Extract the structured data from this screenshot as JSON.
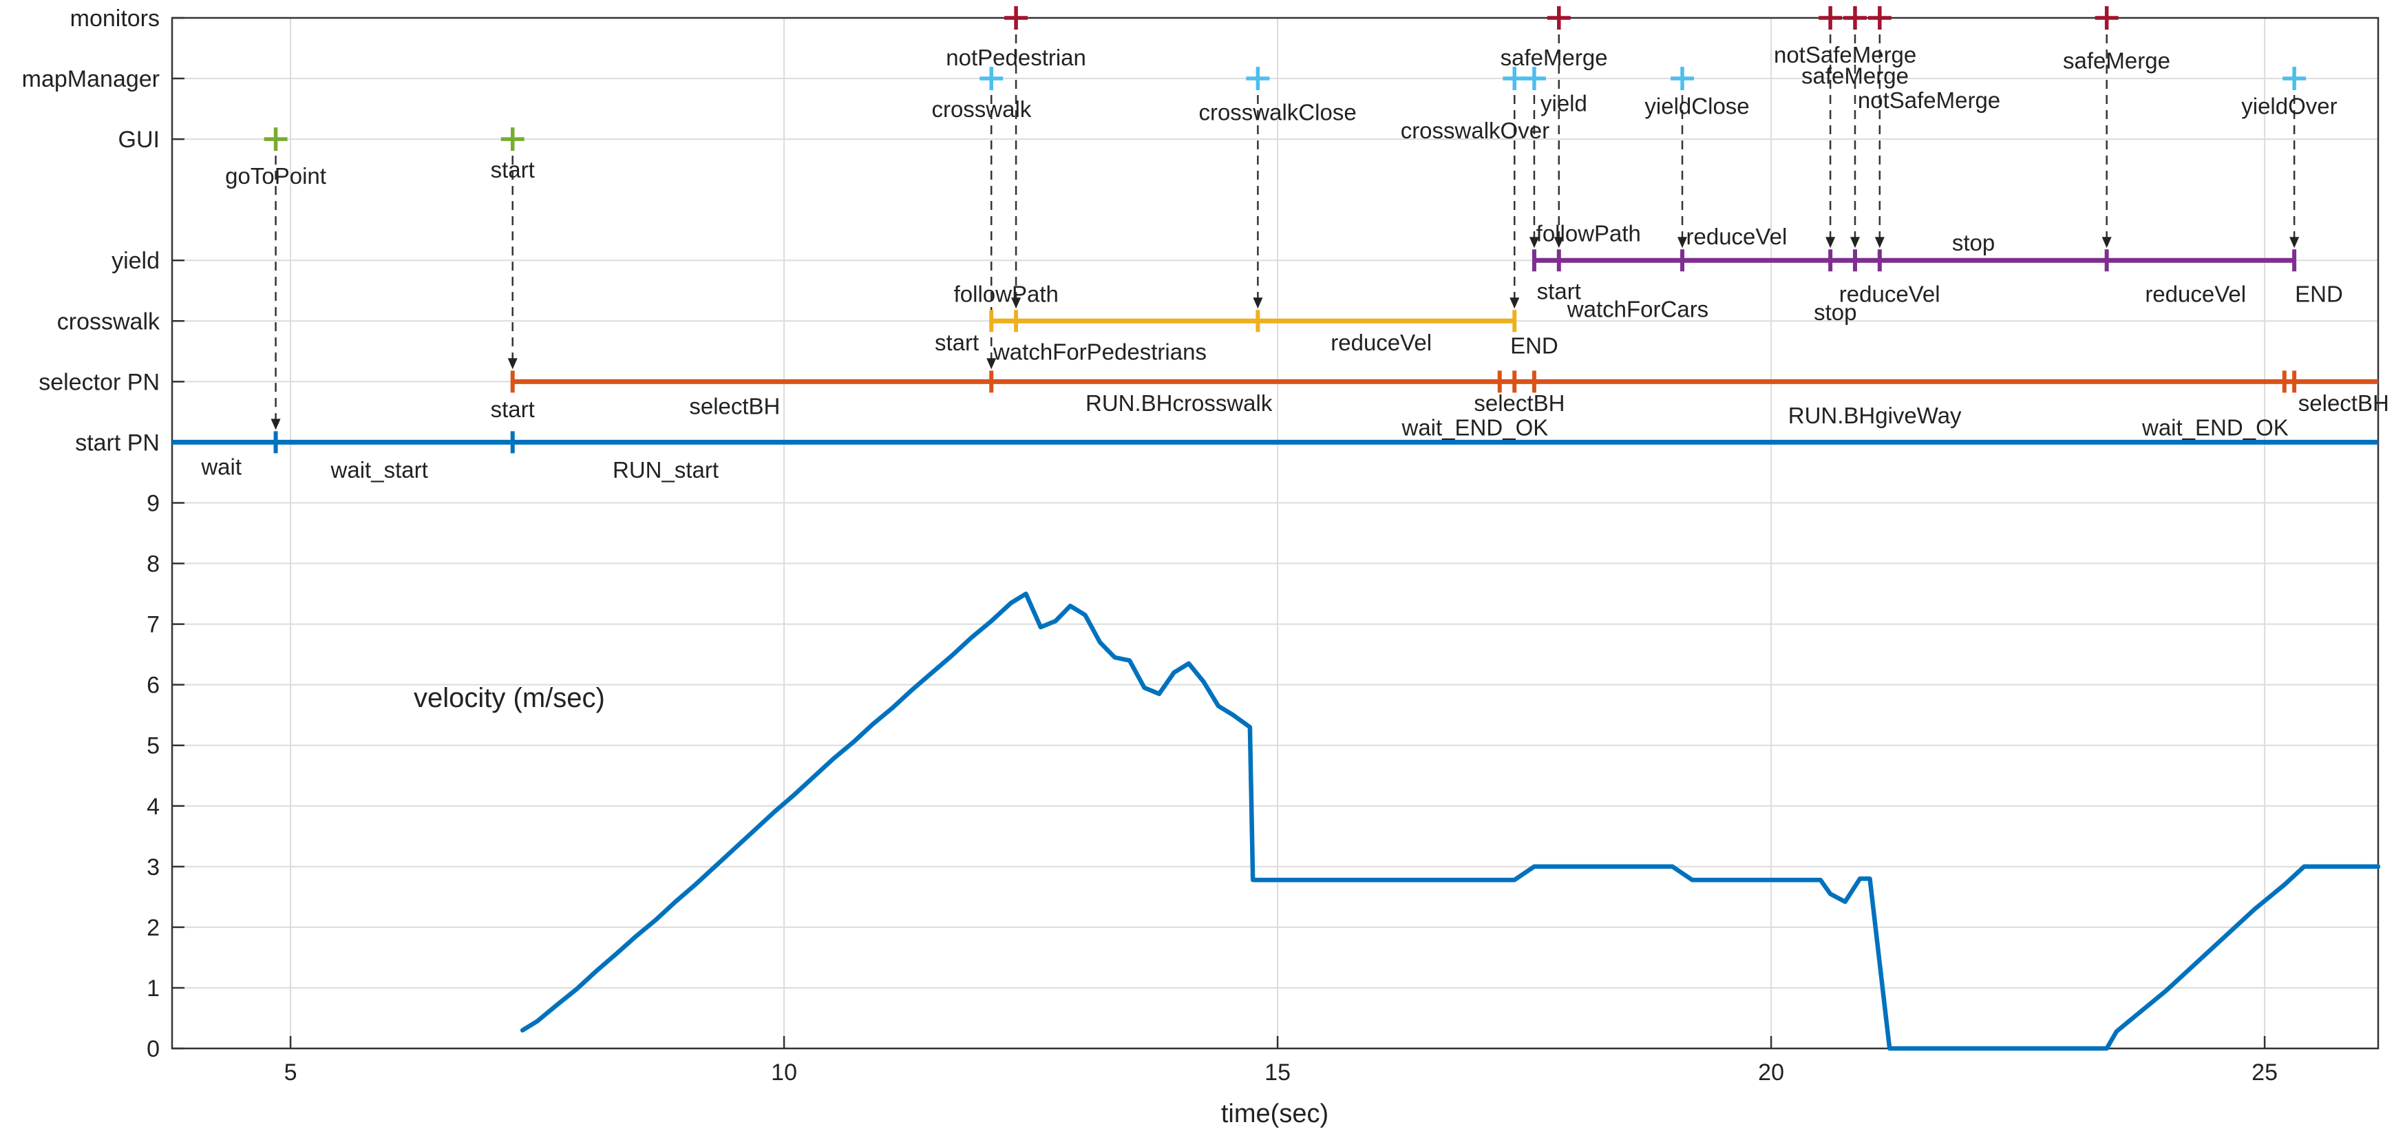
{
  "chart_data": {
    "type": "line",
    "title": "",
    "xlabel": "time(sec)",
    "ylabel": "",
    "annotation": "velocity (m/sec)",
    "xlim": [
      3.8,
      26.15
    ],
    "ylim": [
      0,
      17
    ],
    "grid": true,
    "x_ticks": [
      5,
      10,
      15,
      20,
      25
    ],
    "y_ticks": [
      0,
      1,
      2,
      3,
      4,
      5,
      6,
      7,
      8,
      9
    ],
    "colors": {
      "start_pn": "#0072bd",
      "selector_pn": "#d95319",
      "crosswalk": "#edb120",
      "yield": "#7e2f8e",
      "mapManager": "#4dbeee",
      "gui": "#77ac30",
      "monitors": "#a2142f",
      "velocity": "#0072bd"
    },
    "event_rows": [
      {
        "name": "monitors",
        "y": 17
      },
      {
        "name": "mapManager",
        "y": 16
      },
      {
        "name": "GUI",
        "y": 15
      },
      {
        "name": "yield",
        "y": 13
      },
      {
        "name": "crosswalk",
        "y": 12
      },
      {
        "name": "selector PN",
        "y": 11
      },
      {
        "name": "start PN",
        "y": 10
      }
    ],
    "state_lines": [
      {
        "row": "start PN",
        "color_key": "start_pn",
        "x": [
          3.8,
          26.15
        ],
        "ticks": [
          4.85,
          7.25
        ]
      },
      {
        "row": "selector PN",
        "color_key": "selector_pn",
        "x": [
          7.25,
          26.15
        ],
        "ticks": [
          7.25,
          12.1,
          17.25,
          17.4,
          17.6,
          25.2,
          25.3
        ]
      },
      {
        "row": "crosswalk",
        "color_key": "crosswalk",
        "x": [
          12.1,
          17.4
        ],
        "ticks": [
          12.1,
          12.35,
          14.8,
          17.4
        ]
      },
      {
        "row": "yield",
        "color_key": "yield",
        "x": [
          17.6,
          25.3
        ],
        "ticks": [
          17.6,
          17.85,
          19.1,
          20.6,
          20.85,
          21.1,
          23.4,
          25.3
        ]
      }
    ],
    "event_markers": [
      {
        "row": "GUI",
        "color_key": "gui",
        "x": [
          4.85,
          7.25
        ]
      },
      {
        "row": "mapManager",
        "color_key": "mapManager",
        "x": [
          12.1,
          14.8,
          17.4,
          17.6,
          19.1,
          25.3
        ]
      },
      {
        "row": "monitors",
        "color_key": "monitors",
        "x": [
          12.35,
          17.85,
          20.6,
          20.85,
          21.1,
          23.4
        ]
      }
    ],
    "arrows": [
      {
        "x": 4.85,
        "from": 15,
        "to": 10
      },
      {
        "x": 7.25,
        "from": 15,
        "to": 11
      },
      {
        "x": 12.1,
        "from": 16,
        "to": 11
      },
      {
        "x": 12.35,
        "from": 17,
        "to": 12
      },
      {
        "x": 14.8,
        "from": 16,
        "to": 12
      },
      {
        "x": 17.4,
        "from": 16,
        "to": 12
      },
      {
        "x": 17.6,
        "from": 16,
        "to": 13
      },
      {
        "x": 17.85,
        "from": 17,
        "to": 13
      },
      {
        "x": 19.1,
        "from": 16,
        "to": 13
      },
      {
        "x": 20.6,
        "from": 17,
        "to": 13
      },
      {
        "x": 20.85,
        "from": 17,
        "to": 13
      },
      {
        "x": 21.1,
        "from": 17,
        "to": 13
      },
      {
        "x": 23.4,
        "from": 17,
        "to": 13
      },
      {
        "x": 25.3,
        "from": 16,
        "to": 13
      }
    ],
    "event_labels": [
      {
        "text": "goToPoint",
        "x": 4.85,
        "y": 14.4
      },
      {
        "text": "start",
        "x": 7.25,
        "y": 14.5
      },
      {
        "text": "notPedestrian",
        "x": 12.35,
        "y": 16.35
      },
      {
        "text": "crosswalk",
        "x": 12.0,
        "y": 15.5
      },
      {
        "text": "crosswalkClose",
        "x": 15.0,
        "y": 15.45
      },
      {
        "text": "crosswalkOver",
        "x": 17.0,
        "y": 15.15
      },
      {
        "text": "safeMerge",
        "x": 17.8,
        "y": 16.35
      },
      {
        "text": "yield",
        "x": 17.9,
        "y": 15.6
      },
      {
        "text": "yieldClose",
        "x": 19.25,
        "y": 15.55
      },
      {
        "text": "notSafeMerge",
        "x": 20.75,
        "y": 16.4
      },
      {
        "text": "safeMerge",
        "x": 20.85,
        "y": 16.05
      },
      {
        "text": "notSafeMerge",
        "x": 21.6,
        "y": 15.65
      },
      {
        "text": "safeMerge",
        "x": 23.5,
        "y": 16.3
      },
      {
        "text": "yieldOver",
        "x": 25.25,
        "y": 15.55
      },
      {
        "text": "followPath",
        "x": 18.15,
        "y": 13.45
      },
      {
        "text": "start",
        "x": 17.85,
        "y": 12.5
      },
      {
        "text": "watchForCars",
        "x": 18.65,
        "y": 12.2
      },
      {
        "text": "reduceVel",
        "x": 19.65,
        "y": 13.4
      },
      {
        "text": "stop",
        "x": 20.65,
        "y": 12.15
      },
      {
        "text": "stop",
        "x": 22.05,
        "y": 13.3
      },
      {
        "text": "reduceVel",
        "x": 21.2,
        "y": 12.45
      },
      {
        "text": "reduceVel",
        "x": 24.3,
        "y": 12.45
      },
      {
        "text": "END",
        "x": 25.55,
        "y": 12.45
      },
      {
        "text": "followPath",
        "x": 12.25,
        "y": 12.45
      },
      {
        "text": "start",
        "x": 11.75,
        "y": 11.65
      },
      {
        "text": "watchForPedestrians",
        "x": 13.2,
        "y": 11.5
      },
      {
        "text": "reduceVel",
        "x": 16.05,
        "y": 11.65
      },
      {
        "text": "END",
        "x": 17.6,
        "y": 11.6
      },
      {
        "text": "selectBH",
        "x": 17.45,
        "y": 10.65
      },
      {
        "text": "wait_END_OK",
        "x": 17.0,
        "y": 10.25
      },
      {
        "text": "start",
        "x": 7.25,
        "y": 10.55
      },
      {
        "text": "selectBH",
        "x": 9.5,
        "y": 10.6
      },
      {
        "text": "RUN.BHcrosswalk",
        "x": 14.0,
        "y": 10.65
      },
      {
        "text": "RUN.BHgiveWay",
        "x": 21.05,
        "y": 10.45
      },
      {
        "text": "selectBH",
        "x": 25.8,
        "y": 10.65
      },
      {
        "text": "wait_END_OK",
        "x": 24.5,
        "y": 10.25
      },
      {
        "text": "wait",
        "x": 4.3,
        "y": 9.6
      },
      {
        "text": "wait_start",
        "x": 5.9,
        "y": 9.55
      },
      {
        "text": "RUN_start",
        "x": 8.8,
        "y": 9.55
      }
    ],
    "series": [
      {
        "name": "velocity",
        "color_key": "velocity",
        "x": [
          7.35,
          7.5,
          7.7,
          7.9,
          8.1,
          8.3,
          8.5,
          8.7,
          8.9,
          9.1,
          9.3,
          9.5,
          9.7,
          9.9,
          10.1,
          10.3,
          10.5,
          10.7,
          10.9,
          11.1,
          11.3,
          11.5,
          11.7,
          11.9,
          12.1,
          12.3,
          12.45,
          12.6,
          12.75,
          12.9,
          13.05,
          13.2,
          13.35,
          13.5,
          13.65,
          13.8,
          13.95,
          14.1,
          14.25,
          14.4,
          14.55,
          14.72,
          14.75,
          15.5,
          16.5,
          17.0,
          17.4,
          17.6,
          18.0,
          18.5,
          19.0,
          19.2,
          19.5,
          20.0,
          20.5,
          20.6,
          20.75,
          20.9,
          21.0,
          21.2,
          21.3,
          21.5,
          22.0,
          23.0,
          23.4,
          23.5,
          23.7,
          24.0,
          24.3,
          24.6,
          24.9,
          25.2,
          25.4,
          25.6,
          26.15
        ],
        "values": [
          0.3,
          0.45,
          0.72,
          0.98,
          1.28,
          1.56,
          1.85,
          2.12,
          2.42,
          2.7,
          3.0,
          3.3,
          3.6,
          3.9,
          4.18,
          4.48,
          4.78,
          5.05,
          5.35,
          5.62,
          5.92,
          6.2,
          6.48,
          6.78,
          7.05,
          7.35,
          7.5,
          6.95,
          7.05,
          7.3,
          7.15,
          6.7,
          6.45,
          6.4,
          5.95,
          5.85,
          6.2,
          6.35,
          6.05,
          5.65,
          5.5,
          5.3,
          2.78,
          2.78,
          2.78,
          2.78,
          2.78,
          3.0,
          3.0,
          3.0,
          3.0,
          2.78,
          2.78,
          2.78,
          2.78,
          2.55,
          2.42,
          2.8,
          2.8,
          0.0,
          0.0,
          0.0,
          0.0,
          0.0,
          0.0,
          0.28,
          0.55,
          0.95,
          1.4,
          1.85,
          2.3,
          2.7,
          3.0,
          3.0,
          3.0
        ]
      }
    ]
  }
}
